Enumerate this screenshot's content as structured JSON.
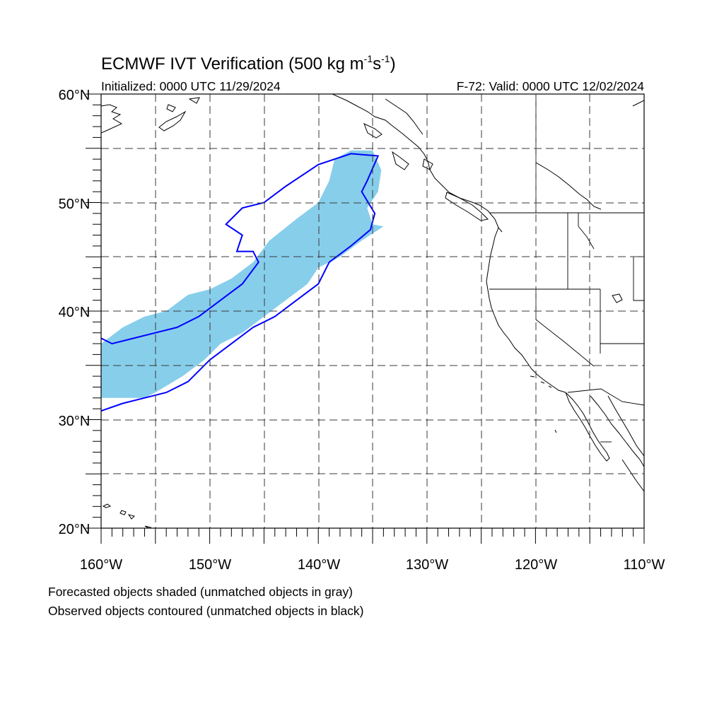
{
  "title_main": "ECMWF IVT Verification (500 kg m",
  "title_sup1": "-1",
  "title_mid": "s",
  "title_sup2": "-1",
  "title_end": ")",
  "initialized": "Initialized: 0000 UTC 11/29/2024",
  "valid": "F-72: Valid: 0000 UTC 12/02/2024",
  "lat_labels": [
    "60°N",
    "50°N",
    "40°N",
    "30°N",
    "20°N"
  ],
  "lon_labels": [
    "160°W",
    "150°W",
    "140°W",
    "130°W",
    "120°W",
    "110°W"
  ],
  "legend_forecast": "Forecasted objects shaded (unmatched objects in gray)",
  "legend_observed": "Observed objects contoured (unmatched objects in black)",
  "map": {
    "lon_range": [
      -160,
      -110
    ],
    "lat_range": [
      20,
      60
    ],
    "grid_lon_step": 5,
    "grid_lat_step": 5,
    "forecast_color": "#87ceeb",
    "observed_color": "#0000ff",
    "forecast_object": [
      [
        -160,
        37
      ],
      [
        -158,
        38.5
      ],
      [
        -156,
        39.5
      ],
      [
        -154,
        40
      ],
      [
        -152,
        41.5
      ],
      [
        -150,
        42
      ],
      [
        -148,
        43
      ],
      [
        -146,
        44.5
      ],
      [
        -144.5,
        46.5
      ],
      [
        -142,
        48.5
      ],
      [
        -140,
        50
      ],
      [
        -139,
        52
      ],
      [
        -138.5,
        54
      ],
      [
        -137,
        54.8
      ],
      [
        -135,
        54.8
      ],
      [
        -134.2,
        53
      ],
      [
        -134.5,
        51
      ],
      [
        -135.5,
        49.5
      ],
      [
        -135,
        48
      ],
      [
        -134,
        47.8
      ],
      [
        -136,
        46.5
      ],
      [
        -138,
        45
      ],
      [
        -140,
        44
      ],
      [
        -141,
        42.5
      ],
      [
        -143,
        41
      ],
      [
        -145,
        39.5
      ],
      [
        -147,
        38
      ],
      [
        -149,
        37
      ],
      [
        -150.5,
        35.5
      ],
      [
        -152.5,
        34
      ],
      [
        -155,
        32.5
      ],
      [
        -156,
        32
      ],
      [
        -158,
        32
      ],
      [
        -160,
        32
      ]
    ],
    "observed_object": [
      [
        -160,
        37.5
      ],
      [
        -159,
        37
      ],
      [
        -157,
        37.5
      ],
      [
        -155,
        38
      ],
      [
        -153,
        38.5
      ],
      [
        -151,
        39.5
      ],
      [
        -149,
        41
      ],
      [
        -147,
        42.5
      ],
      [
        -145.5,
        44.5
      ],
      [
        -146,
        45.5
      ],
      [
        -147.5,
        45.5
      ],
      [
        -147,
        47
      ],
      [
        -148.5,
        48
      ],
      [
        -147,
        49.5
      ],
      [
        -145,
        50
      ],
      [
        -143,
        51.5
      ],
      [
        -140,
        53.5
      ],
      [
        -137,
        54.5
      ],
      [
        -134.5,
        54.3
      ],
      [
        -135.5,
        52
      ],
      [
        -136,
        51
      ],
      [
        -134.8,
        49
      ],
      [
        -135.2,
        47.5
      ],
      [
        -137,
        46
      ],
      [
        -139,
        44.5
      ],
      [
        -140,
        42.5
      ],
      [
        -142,
        41
      ],
      [
        -144,
        39.5
      ],
      [
        -146,
        38.5
      ],
      [
        -148,
        37
      ],
      [
        -150,
        35.5
      ],
      [
        -152,
        33.5
      ],
      [
        -154,
        32.5
      ],
      [
        -156,
        32
      ],
      [
        -158,
        31.5
      ],
      [
        -160,
        30.8
      ]
    ]
  }
}
